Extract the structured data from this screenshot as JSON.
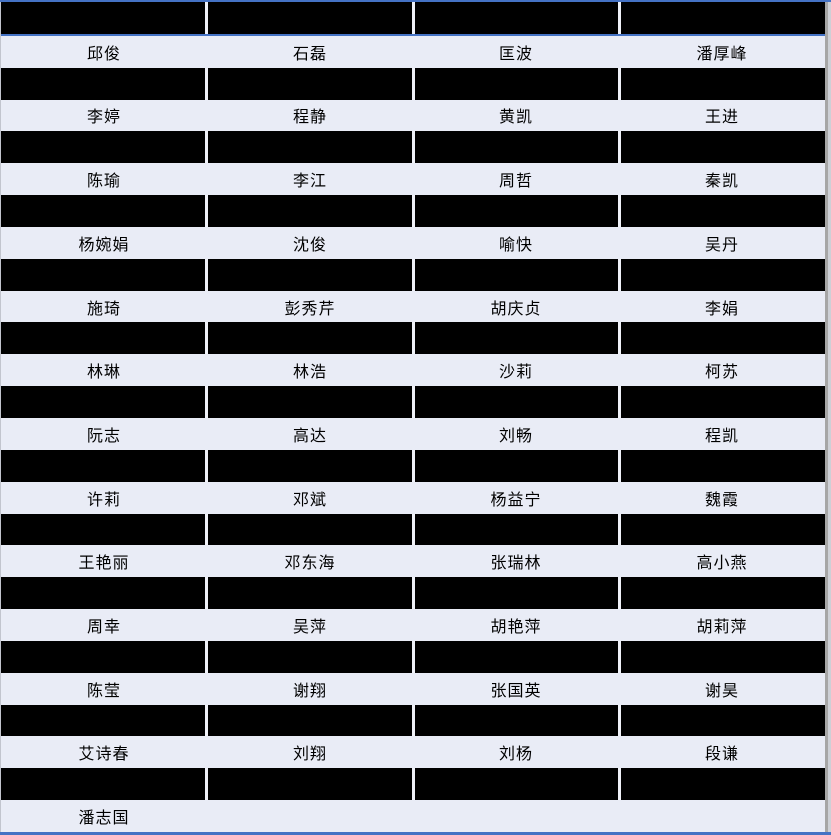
{
  "colors": {
    "accent_blue": "#4472c4",
    "row_background": "#e9ecf6",
    "redaction_black": "#000000",
    "right_border_dark": "#a6a6a6",
    "right_border_light": "#cdd0d6"
  },
  "table": {
    "column_count": 4,
    "rows": [
      {
        "type": "redacted"
      },
      {
        "type": "names",
        "cells": [
          "邱俊",
          "石磊",
          "匡波",
          "潘厚峰"
        ]
      },
      {
        "type": "redacted"
      },
      {
        "type": "names",
        "cells": [
          "李婷",
          "程静",
          "黄凯",
          "王进"
        ]
      },
      {
        "type": "redacted"
      },
      {
        "type": "names",
        "cells": [
          "陈瑜",
          "李江",
          "周哲",
          "秦凯"
        ]
      },
      {
        "type": "redacted"
      },
      {
        "type": "names",
        "cells": [
          "杨婉娟",
          "沈俊",
          "喻快",
          "吴丹"
        ]
      },
      {
        "type": "redacted"
      },
      {
        "type": "names",
        "cells": [
          "施琦",
          "彭秀芹",
          "胡庆贞",
          "李娟"
        ]
      },
      {
        "type": "redacted"
      },
      {
        "type": "names",
        "cells": [
          "林琳",
          "林浩",
          "沙莉",
          "柯苏"
        ]
      },
      {
        "type": "redacted"
      },
      {
        "type": "names",
        "cells": [
          "阮志",
          "高达",
          "刘畅",
          "程凯"
        ]
      },
      {
        "type": "redacted"
      },
      {
        "type": "names",
        "cells": [
          "许莉",
          "邓斌",
          "杨益宁",
          "魏霞"
        ]
      },
      {
        "type": "redacted"
      },
      {
        "type": "names",
        "cells": [
          "王艳丽",
          "邓东海",
          "张瑞林",
          "高小燕"
        ]
      },
      {
        "type": "redacted"
      },
      {
        "type": "names",
        "cells": [
          "周幸",
          "吴萍",
          "胡艳萍",
          "胡莉萍"
        ]
      },
      {
        "type": "redacted"
      },
      {
        "type": "names",
        "cells": [
          "陈莹",
          "谢翔",
          "张国英",
          "谢昊"
        ]
      },
      {
        "type": "redacted"
      },
      {
        "type": "names",
        "cells": [
          "艾诗春",
          "刘翔",
          "刘杨",
          "段谦"
        ]
      },
      {
        "type": "redacted"
      },
      {
        "type": "names",
        "cells": [
          "潘志国",
          "",
          "",
          ""
        ]
      }
    ]
  }
}
